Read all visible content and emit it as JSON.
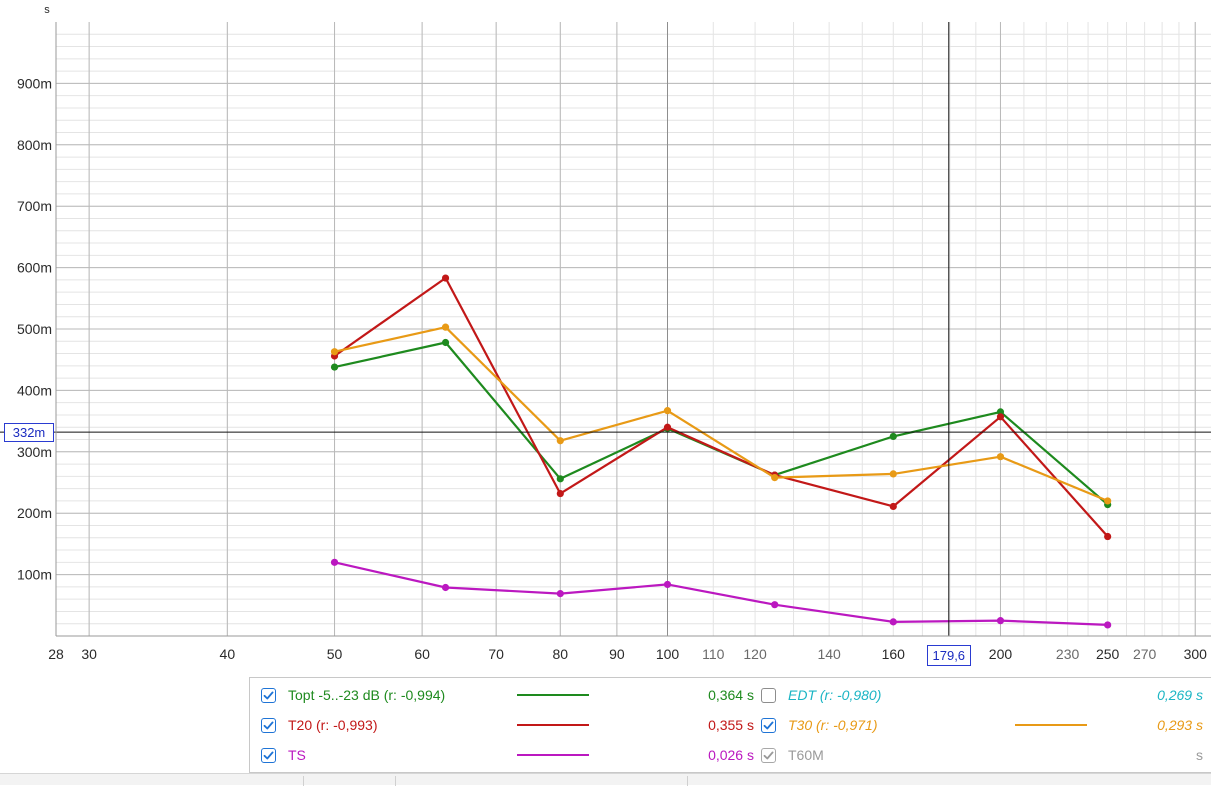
{
  "chart_data": {
    "type": "line",
    "x_scale": "log",
    "xlim": [
      28,
      310
    ],
    "ylim": [
      0,
      1000
    ],
    "y_unit_label": "s",
    "x_ticks": [
      28,
      30,
      40,
      50,
      60,
      70,
      80,
      90,
      100,
      110,
      120,
      140,
      160,
      200,
      230,
      250,
      270,
      300
    ],
    "x_tick_labels": [
      "28",
      "30",
      "40",
      "50",
      "60",
      "70",
      "80",
      "90",
      "100",
      "110",
      "120",
      "140",
      "160",
      "200",
      "230",
      "250",
      "270",
      "300"
    ],
    "y_ticks": [
      100,
      200,
      300,
      400,
      500,
      600,
      700,
      800,
      900
    ],
    "y_tick_labels": [
      "100m",
      "200m",
      "300m",
      "400m",
      "500m",
      "600m",
      "700m",
      "800m",
      "900m"
    ],
    "grid": true,
    "x": [
      50,
      63,
      80,
      100,
      125,
      160,
      200,
      250
    ],
    "series": [
      {
        "name": "Topt -5..-23 dB",
        "color": "#1e8a1e",
        "values": [
          438,
          478,
          256,
          338,
          262,
          325,
          365,
          214
        ]
      },
      {
        "name": "T20",
        "color": "#c21818",
        "values": [
          456,
          583,
          232,
          340,
          262,
          211,
          357,
          162
        ]
      },
      {
        "name": "T30",
        "color": "#e89a16",
        "values": [
          463,
          503,
          318,
          367,
          258,
          264,
          292,
          220
        ]
      },
      {
        "name": "TS",
        "color": "#bb18c0",
        "values": [
          120,
          79,
          69,
          84,
          51,
          23,
          25,
          18
        ]
      }
    ],
    "cursor": {
      "x": 179.6,
      "y": 332,
      "x_label": "179,6",
      "y_label": "332m"
    }
  },
  "legend": {
    "entries": [
      {
        "label": "Topt -5..-23 dB (r: -0,994)",
        "value": "0,364 s",
        "color": "#1e8a1e",
        "checked": true,
        "enabled": true,
        "italic": false,
        "swatch": true
      },
      {
        "label": "T20 (r: -0,993)",
        "value": "0,355 s",
        "color": "#c21818",
        "checked": true,
        "enabled": true,
        "italic": false,
        "swatch": true
      },
      {
        "label": "TS",
        "value": "0,026 s",
        "color": "#bb18c0",
        "checked": true,
        "enabled": true,
        "italic": false,
        "swatch": true
      },
      {
        "label": "EDT (r: -0,980)",
        "value": "0,269 s",
        "color": "#1bb5c4",
        "checked": false,
        "enabled": true,
        "italic": true,
        "swatch": false
      },
      {
        "label": "T30 (r: -0,971)",
        "value": "0,293 s",
        "color": "#e89a16",
        "checked": true,
        "enabled": true,
        "italic": true,
        "swatch": true
      },
      {
        "label": "T60M",
        "value": "s",
        "color": "#9a9a9a",
        "checked": true,
        "enabled": false,
        "italic": false,
        "swatch": false
      }
    ]
  }
}
